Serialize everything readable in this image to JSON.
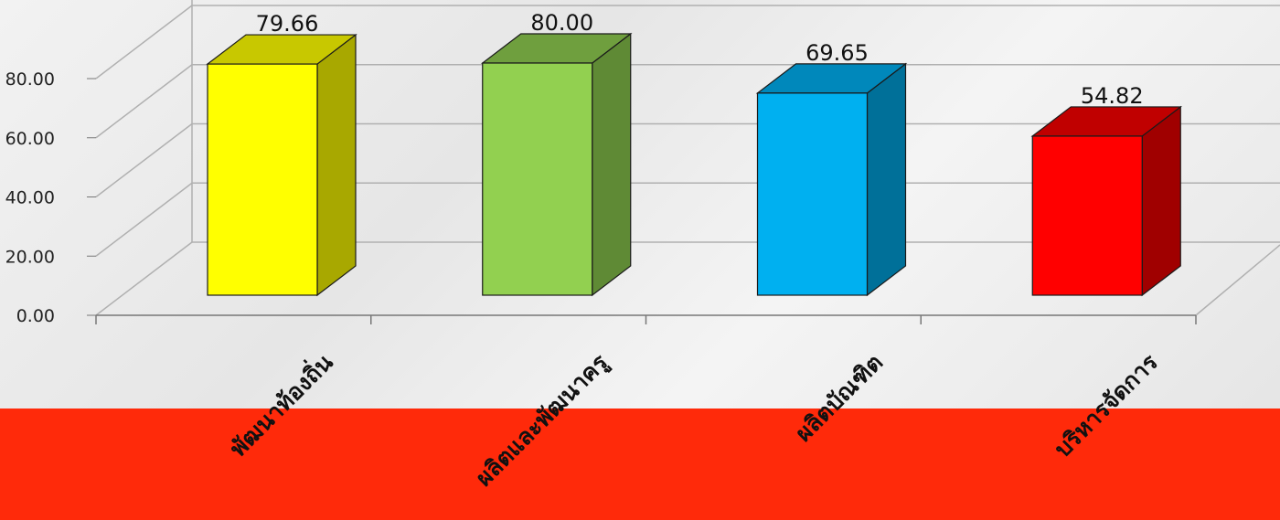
{
  "chart_data": {
    "type": "bar",
    "title": "",
    "xlabel": "",
    "ylabel": "",
    "categories": [
      "พัฒนาท้องถิ่น",
      "ผลิตและพัฒนาครู",
      "ผลิตบัณฑิต",
      "บริหารจัดการ"
    ],
    "values": [
      79.66,
      80.0,
      69.65,
      54.82
    ],
    "value_labels": [
      "79.66",
      "80.00",
      "69.65",
      "54.82"
    ],
    "ylim": [
      0,
      80
    ],
    "y_ticks": [
      "0.00",
      "20.00",
      "40.00",
      "60.00",
      "80.00"
    ],
    "grid": true,
    "legend": "none",
    "style": "3d-column",
    "bar_colors": [
      {
        "front": "#ffff00",
        "side": "#a8a800",
        "top": "#c8c800"
      },
      {
        "front": "#92d050",
        "side": "#5f8a35",
        "top": "#6f9f3e"
      },
      {
        "front": "#00b0f0",
        "side": "#007099",
        "top": "#0088bb"
      },
      {
        "front": "#ff0000",
        "side": "#a00000",
        "top": "#c00000"
      }
    ]
  },
  "theme": {
    "band_color": "#ff2a0a",
    "grid_color": "#b0b0b0",
    "axis_color": "#777777"
  }
}
